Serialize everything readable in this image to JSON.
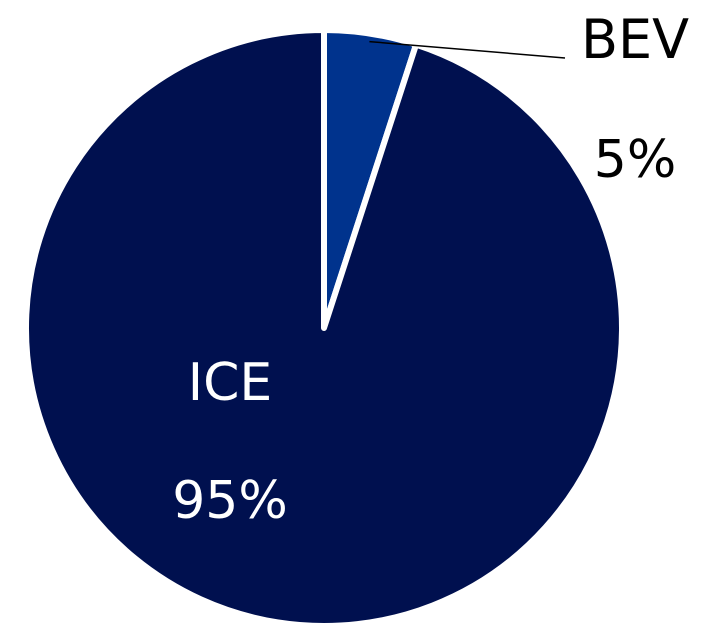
{
  "chart_data": {
    "type": "pie",
    "categories": [
      "BEV",
      "ICE"
    ],
    "values": [
      5,
      95
    ],
    "value_labels": [
      "5%",
      "95%"
    ],
    "colors": [
      "#00338d",
      "#00104f"
    ],
    "separator_color": "#ffffff",
    "leader_color": "#000000",
    "title": "",
    "legend": "none"
  }
}
